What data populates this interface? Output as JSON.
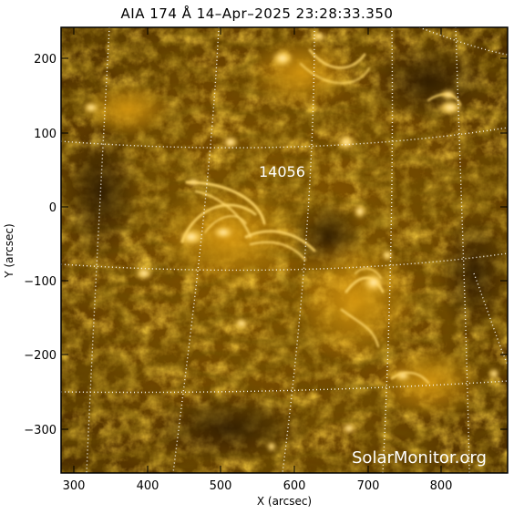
{
  "figure": {
    "title": "AIA 174 Å 14–Apr–2025 23:28:33.350",
    "xlabel": "X (arcsec)",
    "ylabel": "Y (arcsec)",
    "x_ticks": [
      "300",
      "400",
      "500",
      "600",
      "700",
      "800"
    ],
    "y_ticks": [
      "200",
      "100",
      "0",
      "−100",
      "−200",
      "−300"
    ],
    "region_label": "14056",
    "watermark": "SolarMonitor.org",
    "colors": {
      "background": "#ffffff",
      "solar_dark": "#3a2200",
      "solar_mid": "#b07400",
      "solar_bright": "#ffe9a0",
      "grid": "#ffffff"
    }
  }
}
